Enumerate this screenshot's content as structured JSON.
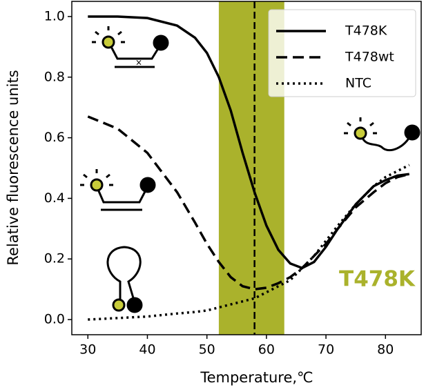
{
  "chart_data": {
    "type": "line",
    "xlabel": "Temperature,℃",
    "ylabel": "Relative fluorescence units",
    "x": [
      30,
      35,
      40,
      45,
      48,
      50,
      52,
      54,
      56,
      58,
      60,
      62,
      64,
      66,
      68,
      70,
      72,
      75,
      78,
      80,
      82,
      84
    ],
    "series": [
      {
        "name": "T478K",
        "color": "#000000",
        "style": "solid",
        "values": [
          1.0,
          1.0,
          0.995,
          0.97,
          0.93,
          0.88,
          0.8,
          0.69,
          0.55,
          0.42,
          0.31,
          0.23,
          0.185,
          0.17,
          0.19,
          0.24,
          0.3,
          0.38,
          0.44,
          0.46,
          0.475,
          0.48
        ]
      },
      {
        "name": "T478wt",
        "color": "#000000",
        "style": "dashed",
        "values": [
          0.67,
          0.63,
          0.55,
          0.42,
          0.32,
          0.25,
          0.19,
          0.14,
          0.11,
          0.1,
          0.105,
          0.12,
          0.14,
          0.17,
          0.21,
          0.25,
          0.3,
          0.37,
          0.42,
          0.45,
          0.47,
          0.48
        ]
      },
      {
        "name": "NTC",
        "color": "#000000",
        "style": "dotted",
        "values": [
          0.0,
          0.005,
          0.01,
          0.02,
          0.025,
          0.03,
          0.04,
          0.05,
          0.06,
          0.07,
          0.09,
          0.11,
          0.13,
          0.17,
          0.21,
          0.26,
          0.31,
          0.38,
          0.44,
          0.47,
          0.49,
          0.51
        ]
      }
    ],
    "shaded_region": [
      52,
      63
    ],
    "shaded_color": "#aab22c",
    "vline": 58,
    "annotation": "T478K",
    "annotation_color": "#aab22c",
    "xlim": [
      27.3,
      86.0
    ],
    "ylim": [
      -0.05,
      1.05
    ],
    "xticks": [
      30,
      40,
      50,
      60,
      70,
      80
    ],
    "yticks": [
      {
        "value": 0,
        "label": "0.0"
      },
      {
        "value": 0.2,
        "label": "0.2"
      },
      {
        "value": 0.4,
        "label": "0.4"
      },
      {
        "value": 0.6,
        "label": "0.6"
      },
      {
        "value": 0.8,
        "label": "0.8"
      },
      {
        "value": 1.0,
        "label": "1.0"
      }
    ],
    "legend": "upper right"
  }
}
